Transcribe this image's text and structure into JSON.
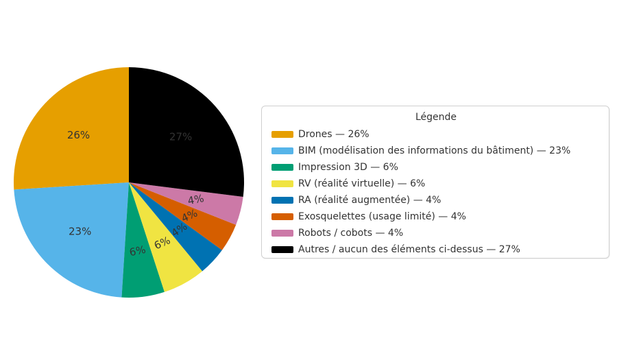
{
  "page": {
    "background_color": "#ffffff",
    "text_color": "#333333"
  },
  "chart_data": {
    "type": "pie",
    "title": "",
    "start_angle_deg": 90,
    "direction": "counterclockwise",
    "pct_label_distance": 0.6,
    "grid": false,
    "series": [
      {
        "label": "Drones",
        "value": 26,
        "pct_label": "26%",
        "color": "#E69F00",
        "pct_label_tilt_deg": 0,
        "legend_label": "Drones — 26%"
      },
      {
        "label": "BIM (modélisation des informations du bâtiment)",
        "value": 23,
        "pct_label": "23%",
        "color": "#56B4E9",
        "pct_label_tilt_deg": 0,
        "legend_label": "BIM (modélisation des informations du bâtiment) — 23%"
      },
      {
        "label": "Impression 3D",
        "value": 6,
        "pct_label": "6%",
        "color": "#009E73",
        "pct_label_tilt_deg": -12,
        "legend_label": "Impression 3D — 6%"
      },
      {
        "label": "RV (réalité virtuelle)",
        "value": 6,
        "pct_label": "6%",
        "color": "#F0E442",
        "pct_label_tilt_deg": -24,
        "legend_label": "RV (réalité virtuelle) — 6%"
      },
      {
        "label": "RA (réalité augmentée)",
        "value": 4,
        "pct_label": "4%",
        "color": "#0072B2",
        "pct_label_tilt_deg": -34,
        "legend_label": "RA (réalité augmentée) — 4%"
      },
      {
        "label": "Exosquelettes (usage limité)",
        "value": 4,
        "pct_label": "4%",
        "color": "#D55E00",
        "pct_label_tilt_deg": -24,
        "legend_label": "Exosquelettes (usage limité) — 4%"
      },
      {
        "label": "Robots / cobots",
        "value": 4,
        "pct_label": "4%",
        "color": "#CC79A7",
        "pct_label_tilt_deg": -11,
        "legend_label": "Robots / cobots — 4%"
      },
      {
        "label": "Autres / aucun des éléments ci-dessus",
        "value": 27,
        "pct_label": "27%",
        "color": "#000000",
        "pct_label_tilt_deg": 0,
        "legend_label": "Autres / aucun des éléments ci-dessus — 27%"
      }
    ],
    "legend": {
      "title": "Légende",
      "position": "right",
      "border_color": "#cfcfcf"
    }
  }
}
